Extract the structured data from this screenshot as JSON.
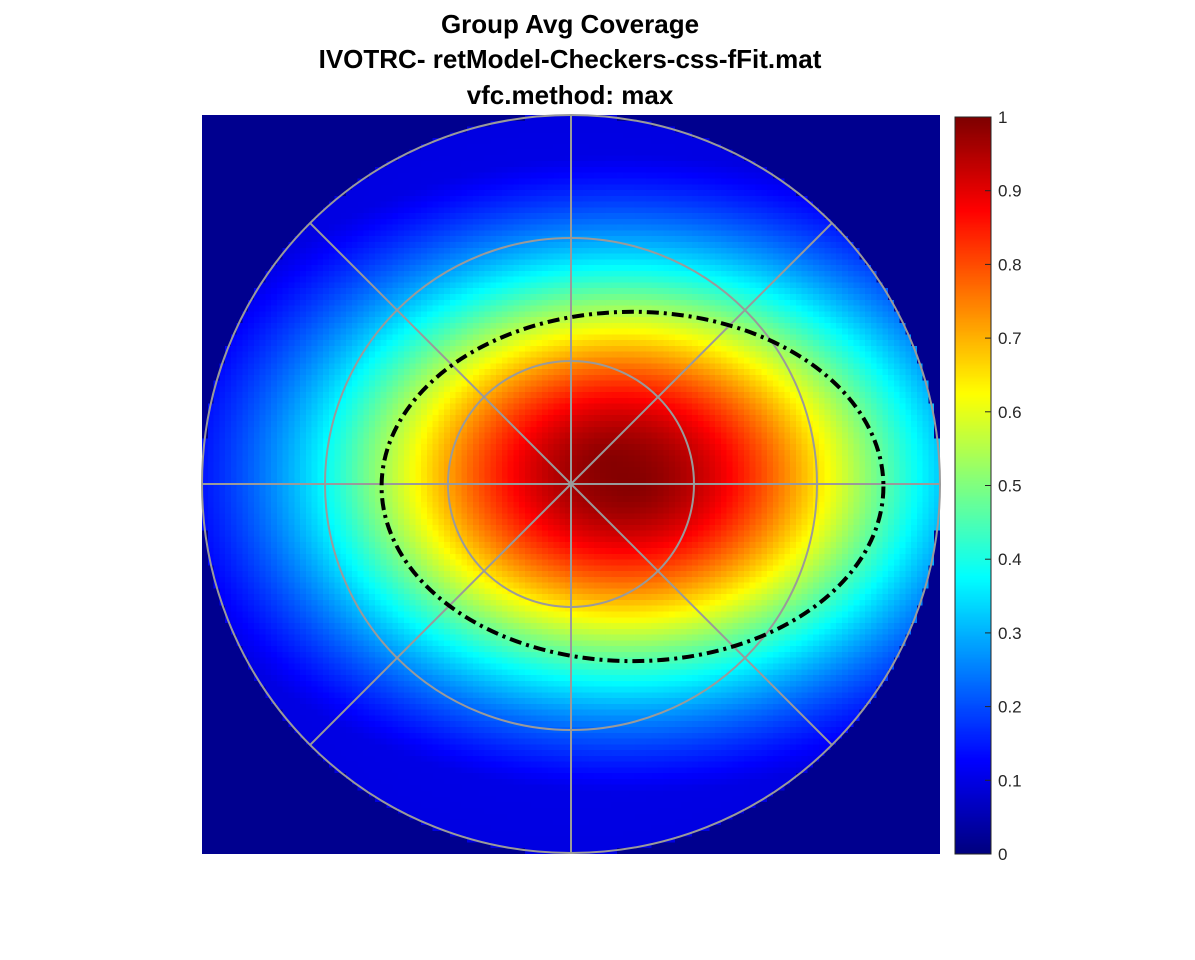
{
  "chart_data": {
    "type": "heatmap",
    "title": [
      "Group Avg Coverage",
      "IVOTRC- retModel-Checkers-css-fFit.mat",
      "vfc.method: max"
    ],
    "colormap": "jet",
    "colors": {
      "background_outside_field": "#00008f",
      "grid": "#9a9a9a",
      "contour": "#000000"
    },
    "colorbar": {
      "clim": [
        0,
        1
      ],
      "ticks": [
        0,
        0.1,
        0.2,
        0.3,
        0.4,
        0.5,
        0.6,
        0.7,
        0.8,
        0.9,
        1
      ],
      "tick_labels": [
        "0",
        "0.1",
        "0.2",
        "0.3",
        "0.4",
        "0.5",
        "0.6",
        "0.7",
        "0.8",
        "0.9",
        "1"
      ]
    },
    "field": {
      "max_eccentricity": 15,
      "eccentricity_rings": [
        5,
        10,
        15
      ],
      "spoke_angles_deg": [
        0,
        45,
        90,
        135,
        180,
        225,
        270,
        315
      ],
      "coverage_peak_center": [
        1.5,
        1.0
      ],
      "coverage_peak_value": 1.0,
      "coverage_edge_value": 0.12
    },
    "contour": {
      "level": 0.5,
      "style": "dash-dot",
      "center": [
        2.5,
        -0.1
      ],
      "radius_x": 10.2,
      "radius_y": 7.1
    }
  }
}
